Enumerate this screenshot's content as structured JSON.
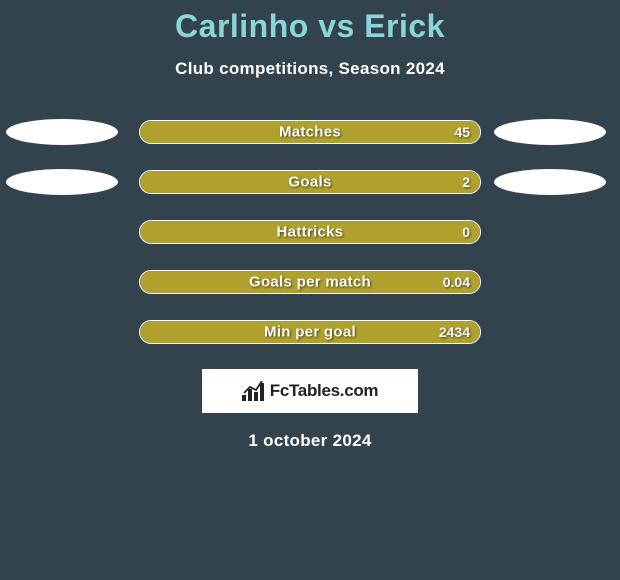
{
  "header": {
    "player1": "Carlinho",
    "vs": "vs",
    "player2": "Erick",
    "subtitle": "Club competitions, Season 2024"
  },
  "chart": {
    "type": "bar",
    "bar_bg_color": "#32434d",
    "bar_fill_color": "#b0a12f",
    "bar_border_color": "#ffffff",
    "ellipse_color": "#ffffff",
    "text_color": "#ffffff",
    "rows": [
      {
        "label": "Matches",
        "value": "45",
        "fill_pct": 100,
        "left_ellipse": true,
        "right_ellipse": true
      },
      {
        "label": "Goals",
        "value": "2",
        "fill_pct": 100,
        "left_ellipse": true,
        "right_ellipse": true
      },
      {
        "label": "Hattricks",
        "value": "0",
        "fill_pct": 100,
        "left_ellipse": false,
        "right_ellipse": false
      },
      {
        "label": "Goals per match",
        "value": "0.04",
        "fill_pct": 100,
        "left_ellipse": false,
        "right_ellipse": false
      },
      {
        "label": "Min per goal",
        "value": "2434",
        "fill_pct": 100,
        "left_ellipse": false,
        "right_ellipse": false
      }
    ]
  },
  "footer": {
    "logo_text": "FcTables.com",
    "date": "1 october 2024"
  },
  "colors": {
    "background": "#32434d",
    "title": "#8bd4d8",
    "text": "#ffffff",
    "bar_fill": "#b0a12f",
    "logo_bg": "#ffffff",
    "logo_text": "#222222"
  }
}
